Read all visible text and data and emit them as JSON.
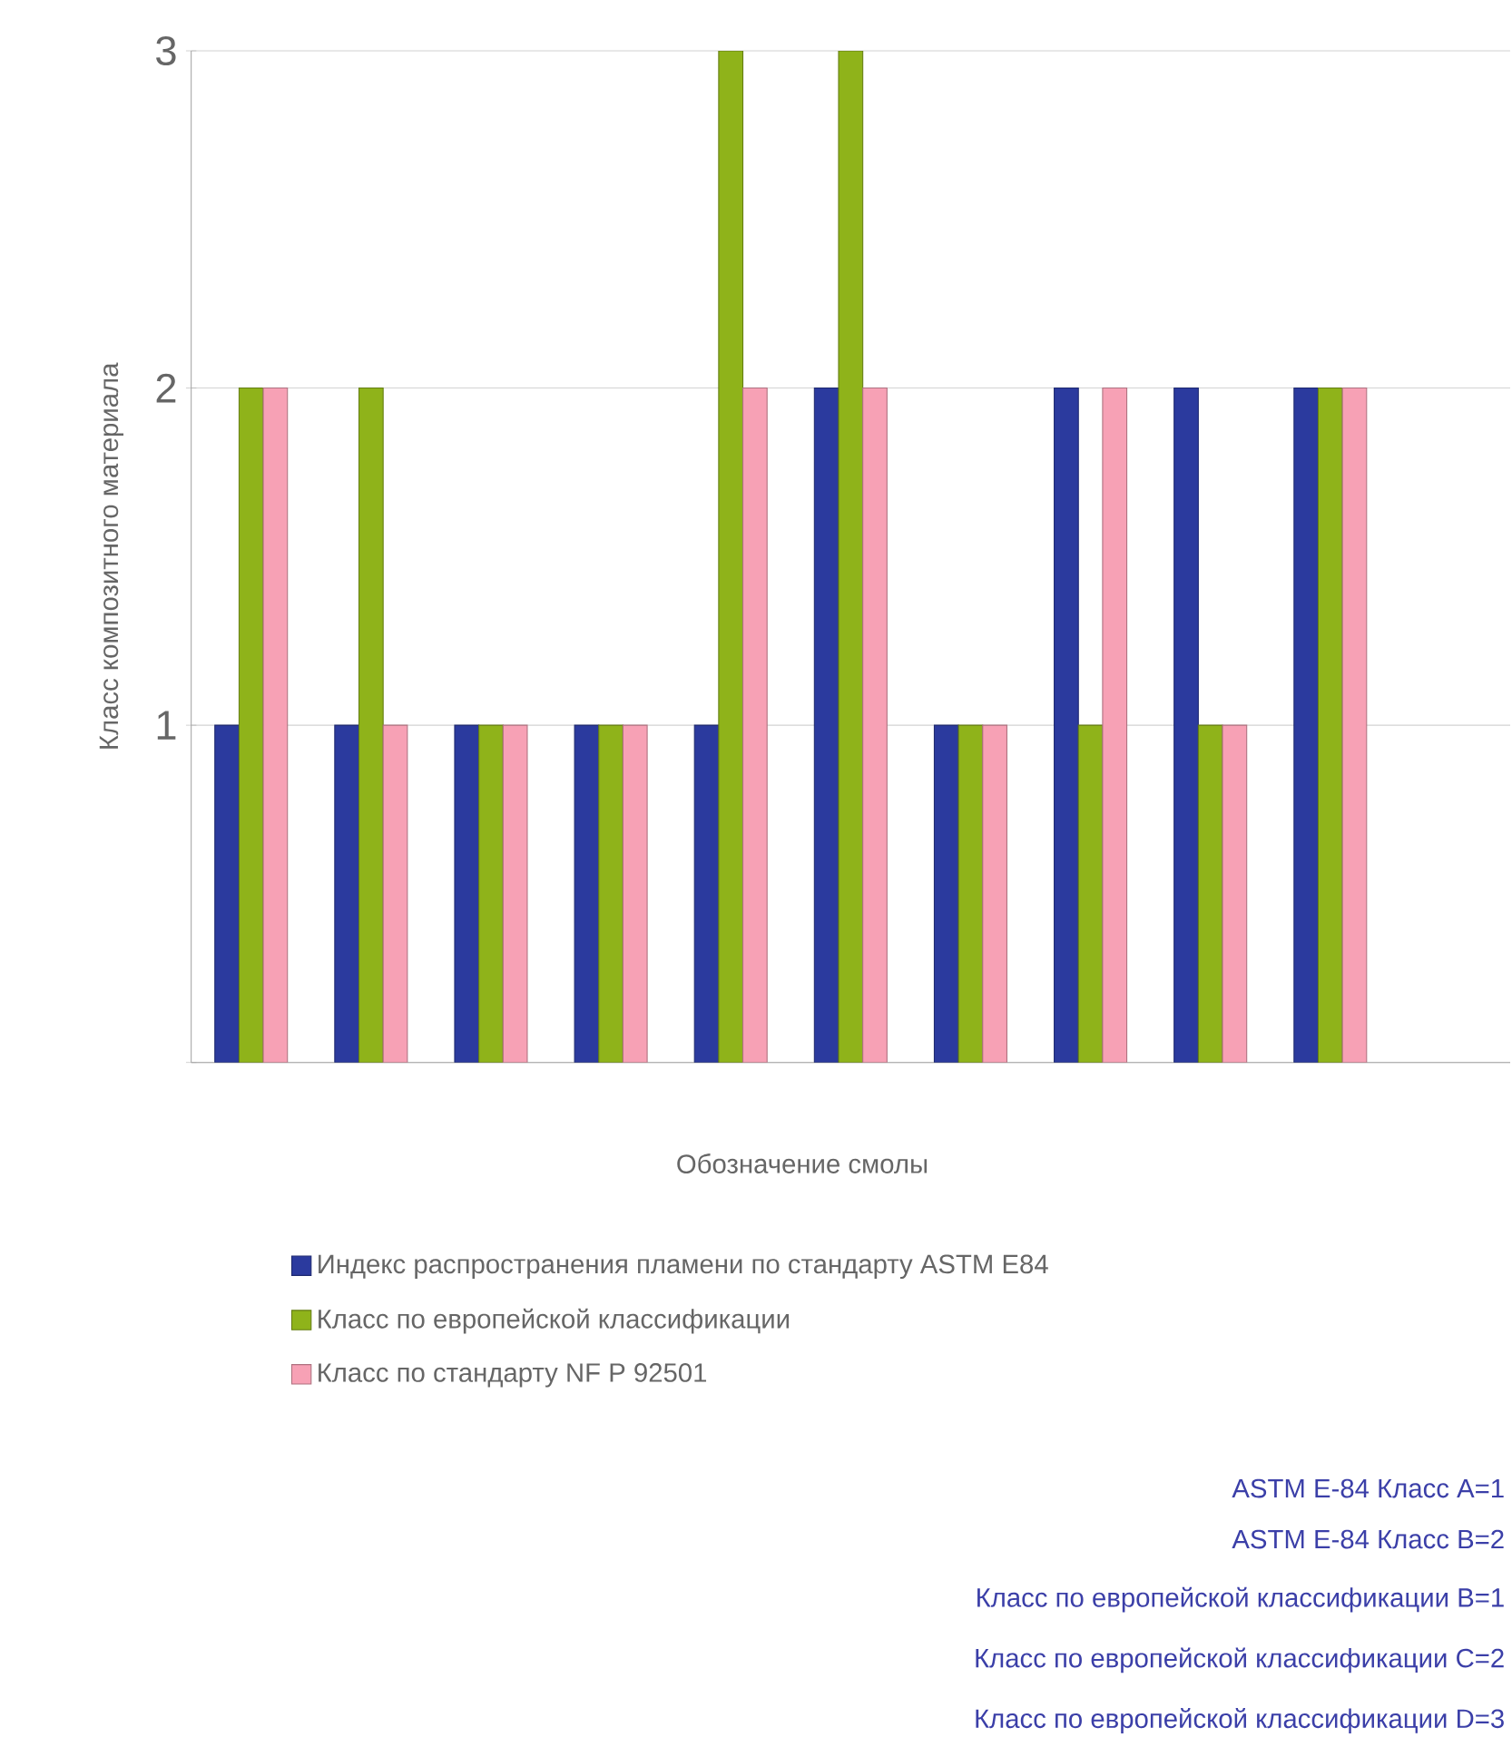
{
  "chart_data": {
    "type": "bar",
    "xlabel": "Обозначение смолы",
    "ylabel": "Класс композитного материала",
    "categories": [
      null,
      null,
      null,
      null,
      null,
      null,
      null,
      null,
      null,
      null,
      null
    ],
    "series": [
      {
        "name": "Индекс распространения пламени по стандарту ASTM E84",
        "color": "#2b3a9e",
        "values": [
          1,
          1,
          1,
          1,
          1,
          2,
          1,
          2,
          2,
          2,
          null
        ]
      },
      {
        "name": "Класс по европейской классификации",
        "color": "#8fb31a",
        "values": [
          2,
          2,
          1,
          1,
          3,
          3,
          1,
          1,
          1,
          2,
          null
        ]
      },
      {
        "name": "Класс по стандарту NF P 92501",
        "color": "#f7a1b5",
        "values": [
          2,
          1,
          1,
          1,
          2,
          2,
          1,
          2,
          1,
          2,
          null
        ]
      }
    ],
    "ylim": [
      0,
      3
    ],
    "yticks": [
      {
        "value": 0,
        "label": null
      },
      1,
      2,
      3
    ],
    "grid": "y",
    "legend": "bottom",
    "annotations": [
      "ASTM E-84 Класс A=1",
      "ASTM E-84 Класс B=2",
      "Класс по европейской классификации B=1",
      "Класс по европейской классификации C=2",
      "Класс по европейской классификации D=3"
    ]
  }
}
